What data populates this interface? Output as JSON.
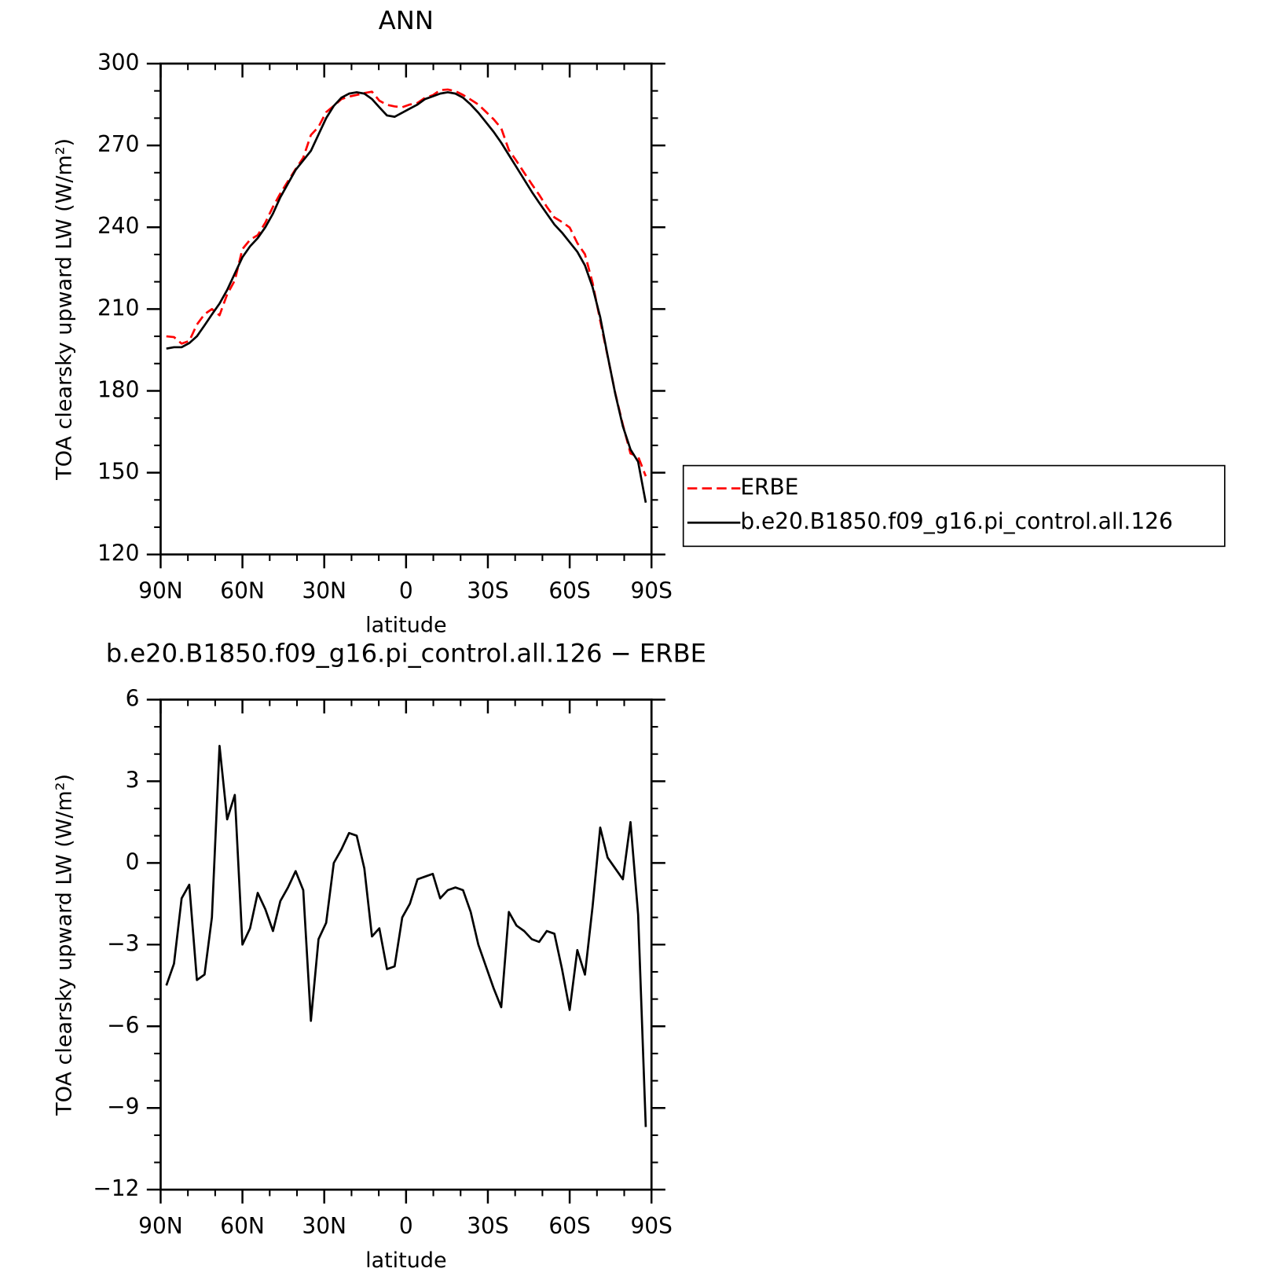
{
  "chart_data": [
    {
      "type": "line",
      "title": "ANN",
      "xlabel": "latitude",
      "ylabel": "TOA clearsky upward LW (W/m²)",
      "x": [
        87.9,
        85.1,
        82.3,
        79.5,
        76.7,
        73.9,
        71.2,
        68.4,
        65.6,
        62.8,
        60.0,
        57.2,
        54.4,
        51.6,
        48.8,
        46.1,
        43.3,
        40.5,
        37.7,
        34.9,
        32.1,
        29.3,
        26.5,
        23.7,
        20.9,
        18.1,
        15.3,
        12.5,
        9.8,
        7.0,
        4.2,
        1.4,
        -1.4,
        -4.2,
        -7.0,
        -9.8,
        -12.5,
        -15.3,
        -18.1,
        -20.9,
        -23.7,
        -26.5,
        -29.3,
        -32.1,
        -34.9,
        -37.7,
        -40.5,
        -43.3,
        -46.1,
        -48.8,
        -51.6,
        -54.4,
        -57.2,
        -60.0,
        -62.8,
        -65.6,
        -68.4,
        -71.2,
        -73.9,
        -76.7,
        -79.5,
        -82.3,
        -85.1,
        -87.9
      ],
      "series": [
        {
          "name": "ERBE",
          "color": "#ff0000",
          "linestyle": "dashed",
          "values": [
            200.0,
            199.7,
            197.3,
            198.3,
            204.3,
            208.1,
            210.0,
            207.7,
            215.4,
            220.5,
            232.0,
            235.4,
            237.1,
            241.7,
            247.5,
            252.4,
            256.9,
            261.3,
            265.5,
            273.8,
            276.8,
            282.2,
            284.5,
            287.0,
            287.9,
            288.5,
            289.2,
            289.7,
            286.4,
            284.9,
            284.3,
            284.0,
            285.0,
            285.6,
            287.5,
            288.4,
            290.3,
            290.5,
            289.9,
            288.5,
            286.8,
            285.0,
            282.3,
            279.6,
            276.3,
            268.3,
            264.3,
            260.0,
            255.8,
            251.9,
            247.5,
            243.6,
            241.9,
            239.9,
            234.2,
            230.1,
            219.6,
            205.7,
            192.8,
            179.2,
            167.6,
            157.0,
            155.9,
            148.7
          ]
        },
        {
          "name": "b.e20.B1850.f09_g16.pi_control.all.126",
          "color": "#000000",
          "linestyle": "solid",
          "values": [
            195.5,
            196.0,
            196.0,
            197.5,
            200.0,
            204.0,
            208.0,
            212.0,
            217.0,
            223.0,
            229.0,
            233.0,
            236.0,
            240.0,
            245.0,
            251.0,
            256.0,
            261.0,
            264.5,
            268.0,
            274.0,
            280.0,
            284.5,
            287.5,
            289.0,
            289.5,
            289.0,
            287.0,
            284.0,
            281.0,
            280.5,
            282.0,
            283.5,
            285.0,
            287.0,
            288.0,
            289.0,
            289.5,
            289.0,
            287.5,
            285.0,
            282.0,
            278.5,
            275.0,
            271.0,
            266.5,
            262.0,
            257.5,
            253.0,
            249.0,
            245.0,
            241.0,
            238.0,
            234.5,
            231.0,
            226.0,
            218.0,
            207.0,
            193.0,
            179.0,
            167.0,
            158.5,
            154.0,
            139.0
          ]
        }
      ],
      "xlim": [
        90,
        -90
      ],
      "xticks": [
        {
          "value": 90,
          "label": "90N"
        },
        {
          "value": 60,
          "label": "60N"
        },
        {
          "value": 30,
          "label": "30N"
        },
        0,
        {
          "value": -30,
          "label": "30S"
        },
        {
          "value": -60,
          "label": "60S"
        },
        {
          "value": -90,
          "label": "90S"
        }
      ],
      "ylim": [
        120,
        300
      ],
      "yticks": [
        120,
        150,
        180,
        210,
        240,
        270,
        300
      ],
      "legend": "right"
    },
    {
      "type": "line",
      "title": "b.e20.B1850.f09_g16.pi_control.all.126 − ERBE",
      "xlabel": "latitude",
      "ylabel": "TOA clearsky upward LW (W/m²)",
      "x": [
        87.9,
        85.1,
        82.3,
        79.5,
        76.7,
        73.9,
        71.2,
        68.4,
        65.6,
        62.8,
        60.0,
        57.2,
        54.4,
        51.6,
        48.8,
        46.1,
        43.3,
        40.5,
        37.7,
        34.9,
        32.1,
        29.3,
        26.5,
        23.7,
        20.9,
        18.1,
        15.3,
        12.5,
        9.8,
        7.0,
        4.2,
        1.4,
        -1.4,
        -4.2,
        -7.0,
        -9.8,
        -12.5,
        -15.3,
        -18.1,
        -20.9,
        -23.7,
        -26.5,
        -29.3,
        -32.1,
        -34.9,
        -37.7,
        -40.5,
        -43.3,
        -46.1,
        -48.8,
        -51.6,
        -54.4,
        -57.2,
        -60.0,
        -62.8,
        -65.6,
        -68.4,
        -71.2,
        -73.9,
        -76.7,
        -79.5,
        -82.3,
        -85.1,
        -87.9
      ],
      "series": [
        {
          "color": "#000000",
          "linestyle": "solid",
          "values": [
            -4.5,
            -3.7,
            -1.3,
            -0.8,
            -4.3,
            -4.1,
            -2.0,
            4.3,
            1.6,
            2.5,
            -3.0,
            -2.4,
            -1.1,
            -1.7,
            -2.5,
            -1.4,
            -0.9,
            -0.3,
            -1.0,
            -5.8,
            -2.8,
            -2.2,
            0.0,
            0.5,
            1.1,
            1.0,
            -0.2,
            -2.7,
            -2.4,
            -3.9,
            -3.8,
            -2.0,
            -1.5,
            -0.6,
            -0.5,
            -0.4,
            -1.3,
            -1.0,
            -0.9,
            -1.0,
            -1.8,
            -3.0,
            -3.8,
            -4.6,
            -5.3,
            -1.8,
            -2.3,
            -2.5,
            -2.8,
            -2.9,
            -2.5,
            -2.6,
            -3.9,
            -5.4,
            -3.2,
            -4.1,
            -1.6,
            1.3,
            0.2,
            -0.2,
            -0.6,
            1.5,
            -1.9,
            -9.7
          ]
        }
      ],
      "xlim": [
        90,
        -90
      ],
      "xticks": [
        {
          "value": 90,
          "label": "90N"
        },
        {
          "value": 60,
          "label": "60N"
        },
        {
          "value": 30,
          "label": "30N"
        },
        0,
        {
          "value": -30,
          "label": "30S"
        },
        {
          "value": -60,
          "label": "60S"
        },
        {
          "value": -90,
          "label": "90S"
        }
      ],
      "ylim": [
        -12,
        6
      ],
      "yticks": [
        {
          "value": -12,
          "label": "−12"
        },
        {
          "value": -9,
          "label": "−9"
        },
        {
          "value": -6,
          "label": "−6"
        },
        {
          "value": -3,
          "label": "−3"
        },
        0,
        3,
        6
      ]
    }
  ]
}
